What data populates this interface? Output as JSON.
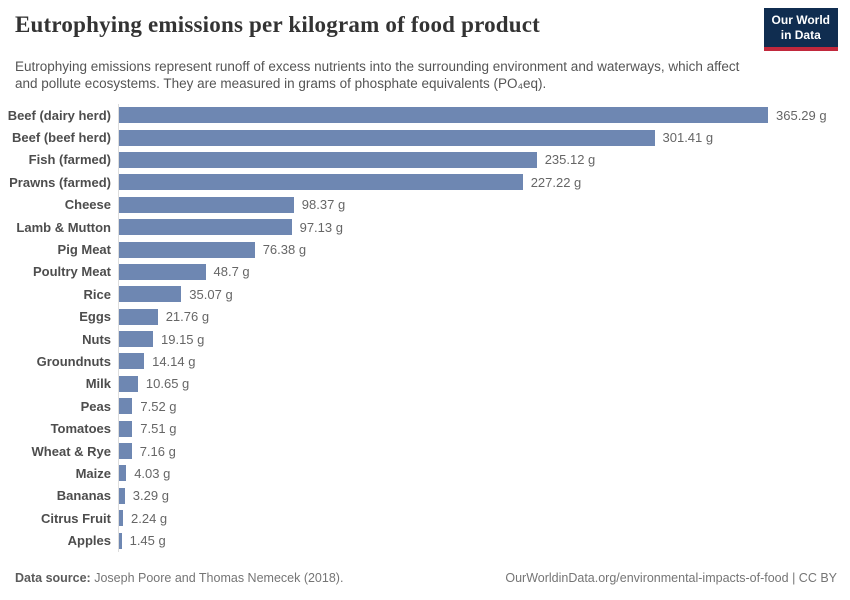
{
  "header": {
    "title": "Eutrophying emissions per kilogram of food product",
    "subtitle": "Eutrophying emissions represent runoff of excess nutrients into the surrounding environment and waterways, which affect and pollute ecosystems. They are measured in grams of phosphate equivalents (PO₄eq).",
    "logo": {
      "line1": "Our World",
      "line2": "in Data"
    }
  },
  "chart_data": {
    "type": "bar",
    "orientation": "horizontal",
    "title": "Eutrophying emissions per kilogram of food product",
    "xlabel": "",
    "ylabel": "",
    "unit": "g",
    "xlim": [
      0,
      365.29
    ],
    "grid": false,
    "legend": "none",
    "bar_color": "#6e87b2",
    "axis_line_color": "#dddddd",
    "categories": [
      "Beef (dairy herd)",
      "Beef (beef herd)",
      "Fish (farmed)",
      "Prawns (farmed)",
      "Cheese",
      "Lamb & Mutton",
      "Pig Meat",
      "Poultry Meat",
      "Rice",
      "Eggs",
      "Nuts",
      "Groundnuts",
      "Milk",
      "Peas",
      "Tomatoes",
      "Wheat & Rye",
      "Maize",
      "Bananas",
      "Citrus Fruit",
      "Apples"
    ],
    "values": [
      365.29,
      301.41,
      235.12,
      227.22,
      98.37,
      97.13,
      76.38,
      48.7,
      35.07,
      21.76,
      19.15,
      14.14,
      10.65,
      7.52,
      7.51,
      7.16,
      4.03,
      3.29,
      2.24,
      1.45
    ],
    "value_labels": [
      "365.29 g",
      "301.41 g",
      "235.12 g",
      "227.22 g",
      "98.37 g",
      "97.13 g",
      "76.38 g",
      "48.7 g",
      "35.07 g",
      "21.76 g",
      "19.15 g",
      "14.14 g",
      "10.65 g",
      "7.52 g",
      "7.51 g",
      "7.16 g",
      "4.03 g",
      "3.29 g",
      "2.24 g",
      "1.45 g"
    ]
  },
  "footer": {
    "source_label": "Data source:",
    "source_text": " Joseph Poore and Thomas Nemecek (2018).",
    "url": "OurWorldinData.org/environmental-impacts-of-food",
    "license": " | CC BY"
  }
}
